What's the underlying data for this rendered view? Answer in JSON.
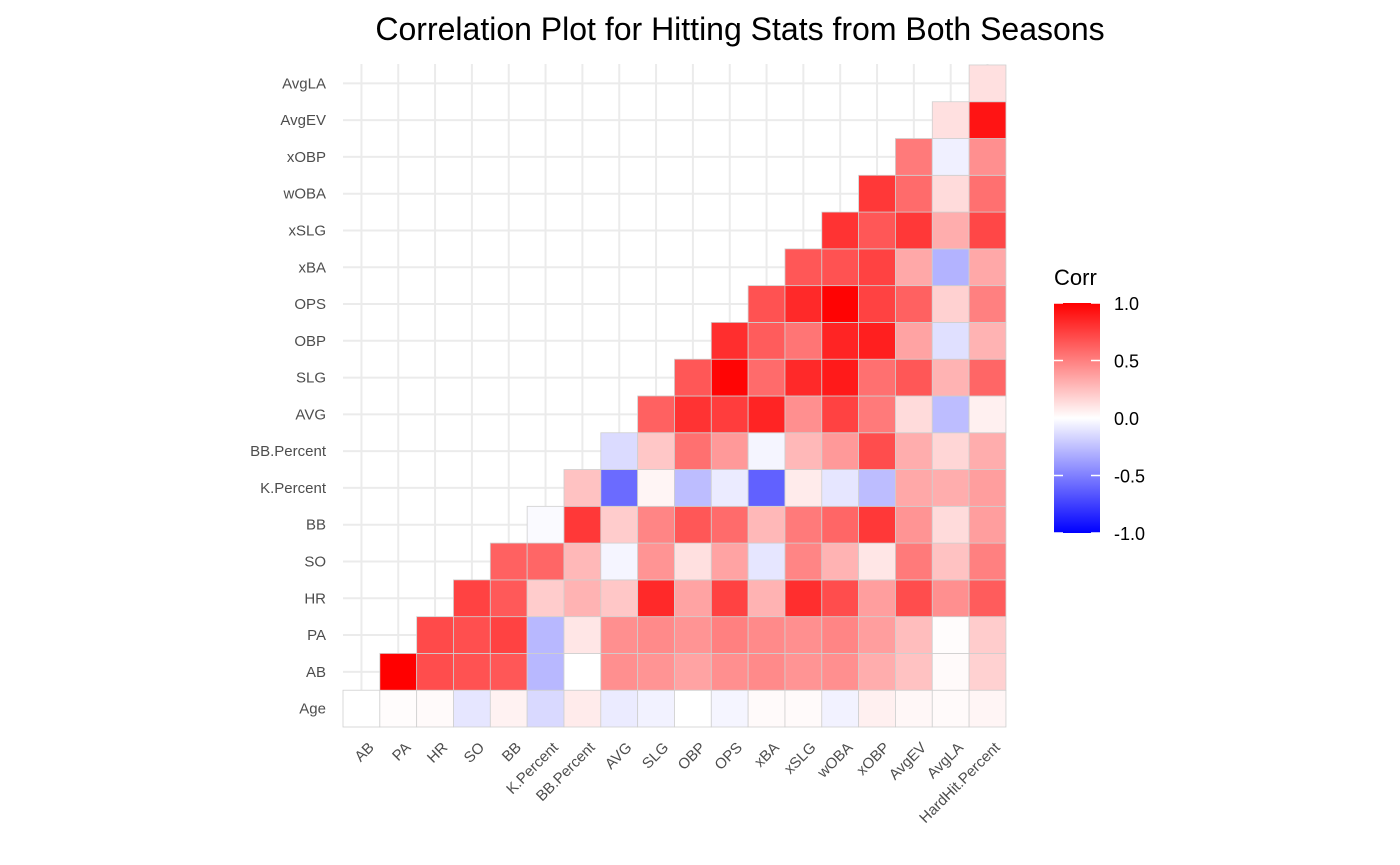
{
  "chart_data": {
    "type": "heatmap",
    "title": "Correlation Plot for Hitting Stats from Both Seasons",
    "xlabel": "",
    "ylabel": "",
    "x_categories": [
      "AB",
      "PA",
      "HR",
      "SO",
      "BB",
      "K.Percent",
      "BB.Percent",
      "AVG",
      "SLG",
      "OBP",
      "OPS",
      "xBA",
      "xSLG",
      "wOBA",
      "xOBP",
      "AvgEV",
      "AvgLA",
      "HardHit.Percent"
    ],
    "y_categories": [
      "Age",
      "AB",
      "PA",
      "HR",
      "SO",
      "BB",
      "K.Percent",
      "BB.Percent",
      "AVG",
      "SLG",
      "OBP",
      "OPS",
      "xBA",
      "xSLG",
      "wOBA",
      "xOBP",
      "AvgEV",
      "AvgLA"
    ],
    "matrix": [
      [
        0.0,
        0.01,
        0.02,
        -0.1,
        0.05,
        -0.15,
        0.08,
        -0.08,
        -0.05,
        0.0,
        -0.04,
        0.02,
        0.02,
        -0.05,
        0.06,
        0.03,
        0.02,
        0.04
      ],
      [
        null,
        1.0,
        0.7,
        0.68,
        0.66,
        -0.28,
        0.0,
        0.44,
        0.42,
        0.36,
        0.44,
        0.46,
        0.42,
        0.44,
        0.32,
        0.24,
        0.02,
        0.18
      ],
      [
        null,
        null,
        0.71,
        0.69,
        0.74,
        -0.28,
        0.1,
        0.44,
        0.46,
        0.42,
        0.5,
        0.46,
        0.44,
        0.48,
        0.38,
        0.26,
        0.01,
        0.2
      ],
      [
        null,
        null,
        null,
        0.74,
        0.65,
        0.2,
        0.3,
        0.22,
        0.84,
        0.36,
        0.74,
        0.3,
        0.82,
        0.7,
        0.38,
        0.7,
        0.44,
        0.64
      ],
      [
        null,
        null,
        null,
        null,
        0.62,
        0.6,
        0.28,
        -0.04,
        0.42,
        0.12,
        0.36,
        -0.1,
        0.48,
        0.3,
        0.1,
        0.52,
        0.24,
        0.5
      ],
      [
        null,
        null,
        null,
        null,
        null,
        -0.02,
        0.78,
        0.2,
        0.48,
        0.66,
        0.58,
        0.28,
        0.52,
        0.6,
        0.78,
        0.42,
        0.14,
        0.38
      ],
      [
        null,
        null,
        null,
        null,
        null,
        null,
        0.24,
        -0.58,
        0.04,
        -0.26,
        -0.08,
        -0.62,
        0.08,
        -0.1,
        -0.26,
        0.34,
        0.32,
        0.38
      ],
      [
        null,
        null,
        null,
        null,
        null,
        null,
        null,
        -0.14,
        0.22,
        0.56,
        0.4,
        -0.04,
        0.28,
        0.4,
        0.7,
        0.32,
        0.16,
        0.32
      ],
      [
        null,
        null,
        null,
        null,
        null,
        null,
        null,
        null,
        0.62,
        0.8,
        0.76,
        0.86,
        0.44,
        0.74,
        0.52,
        0.14,
        -0.26,
        0.06
      ],
      [
        null,
        null,
        null,
        null,
        null,
        null,
        null,
        null,
        null,
        0.66,
        0.98,
        0.58,
        0.84,
        0.9,
        0.56,
        0.66,
        0.3,
        0.6
      ],
      [
        null,
        null,
        null,
        null,
        null,
        null,
        null,
        null,
        null,
        null,
        0.82,
        0.64,
        0.54,
        0.86,
        0.88,
        0.36,
        -0.12,
        0.3
      ],
      [
        null,
        null,
        null,
        null,
        null,
        null,
        null,
        null,
        null,
        null,
        null,
        0.68,
        0.84,
        0.99,
        0.74,
        0.62,
        0.18,
        0.5
      ],
      [
        null,
        null,
        null,
        null,
        null,
        null,
        null,
        null,
        null,
        null,
        null,
        null,
        0.66,
        0.68,
        0.74,
        0.34,
        -0.3,
        0.34
      ],
      [
        null,
        null,
        null,
        null,
        null,
        null,
        null,
        null,
        null,
        null,
        null,
        null,
        null,
        0.8,
        0.66,
        0.78,
        0.32,
        0.72
      ],
      [
        null,
        null,
        null,
        null,
        null,
        null,
        null,
        null,
        null,
        null,
        null,
        null,
        null,
        null,
        0.78,
        0.58,
        0.14,
        0.56
      ],
      [
        null,
        null,
        null,
        null,
        null,
        null,
        null,
        null,
        null,
        null,
        null,
        null,
        null,
        null,
        null,
        0.52,
        -0.06,
        0.44
      ],
      [
        null,
        null,
        null,
        null,
        null,
        null,
        null,
        null,
        null,
        null,
        null,
        null,
        null,
        null,
        null,
        null,
        0.12,
        0.92
      ],
      [
        null,
        null,
        null,
        null,
        null,
        null,
        null,
        null,
        null,
        null,
        null,
        null,
        null,
        null,
        null,
        null,
        null,
        0.12
      ]
    ],
    "color_scale": {
      "low": "#0000FF",
      "mid": "#FFFFFF",
      "high": "#FF0000",
      "limits": [
        -1.0,
        1.0
      ]
    },
    "legend": {
      "title": "Corr",
      "ticks": [
        "1.0",
        "0.5",
        "0.0",
        "-0.5",
        "-1.0"
      ],
      "tick_values": [
        1.0,
        0.5,
        0.0,
        -0.5,
        -1.0
      ],
      "placement": "right"
    },
    "grid": true
  }
}
